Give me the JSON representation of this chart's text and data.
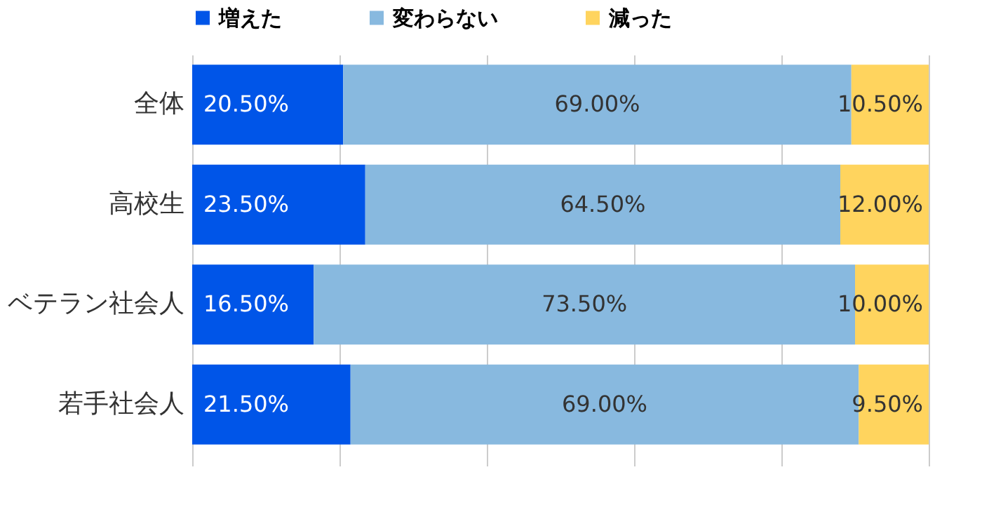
{
  "chart_data": {
    "type": "bar",
    "orientation": "horizontal",
    "stacked": true,
    "categories": [
      "全体",
      "高校生",
      "ベテラン社会人",
      "若手社会人"
    ],
    "series": [
      {
        "name": "増えた",
        "color": "#0055e8",
        "values": [
          20.5,
          23.5,
          16.5,
          21.5
        ],
        "value_labels": [
          "20.50%",
          "23.50%",
          "16.50%",
          "21.50%"
        ]
      },
      {
        "name": "変わらない",
        "color": "#88b9df",
        "values": [
          69.0,
          64.5,
          73.5,
          69.0
        ],
        "value_labels": [
          "69.00%",
          "64.50%",
          "73.50%",
          "69.00%"
        ]
      },
      {
        "name": "減った",
        "color": "#ffd45e",
        "values": [
          10.5,
          12.0,
          10.0,
          9.5
        ],
        "value_labels": [
          "10.50%",
          "12.00%",
          "10.00%",
          "9.50%"
        ]
      }
    ],
    "xlim": [
      0,
      100
    ],
    "xticks": [
      {
        "value": 0,
        "label": null
      },
      {
        "value": 20,
        "label": null
      },
      {
        "value": 40,
        "label": null
      },
      {
        "value": 60,
        "label": null
      },
      {
        "value": 80,
        "label": null
      },
      {
        "value": 100,
        "label": null
      }
    ],
    "tick_labels": "y",
    "grid": "x",
    "legend": "top"
  }
}
